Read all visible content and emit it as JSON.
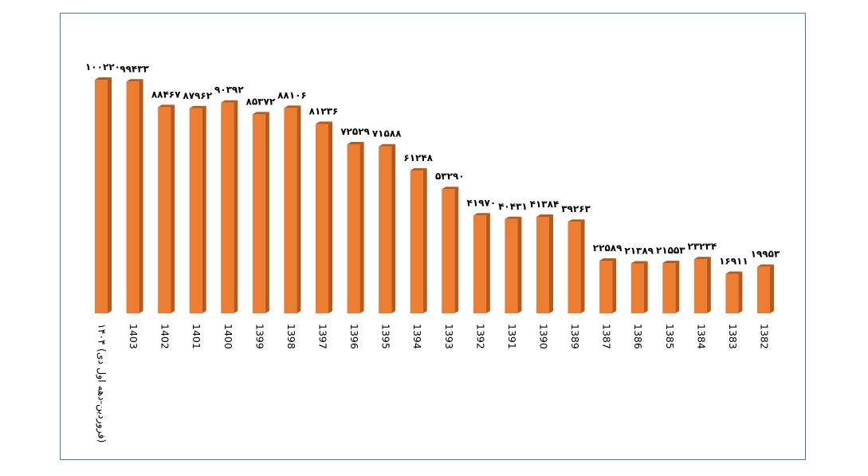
{
  "chart_data": {
    "type": "bar",
    "categories": [
      "۱۴۰۴ (فروردین-دهه اول دی)",
      "1403",
      "1402",
      "1401",
      "1400",
      "1399",
      "1398",
      "1397",
      "1396",
      "1395",
      "1394",
      "1393",
      "1392",
      "1391",
      "1390",
      "1389",
      "1387",
      "1386",
      "1385",
      "1384",
      "1383",
      "1382"
    ],
    "values": [
      100220,
      99433,
      88467,
      87962,
      90392,
      85372,
      88106,
      81236,
      72529,
      71588,
      61248,
      53290,
      41970,
      40431,
      41384,
      39263,
      22589,
      21389,
      21553,
      23234,
      16911,
      19953
    ],
    "value_labels": [
      "۱۰۰۲۲۰",
      "۹۹۴۳۳",
      "۸۸۴۶۷",
      "۸۷۹۶۲",
      "۹۰۳۹۲",
      "۸۵۳۷۲",
      "۸۸۱۰۶",
      "۸۱۲۳۶",
      "۷۲۵۲۹",
      "۷۱۵۸۸",
      "۶۱۲۴۸",
      "۵۳۲۹۰",
      "۴۱۹۷۰",
      "۴۰۴۳۱",
      "۴۱۳۸۴",
      "۳۹۲۶۳",
      "۲۲۵۸۹",
      "۲۱۳۸۹",
      "۲۱۵۵۳",
      "۲۳۲۳۴",
      "۱۶۹۱۱",
      "۱۹۹۵۳"
    ],
    "color": "#ed7d31",
    "side_color": "#b35a1f"
  }
}
